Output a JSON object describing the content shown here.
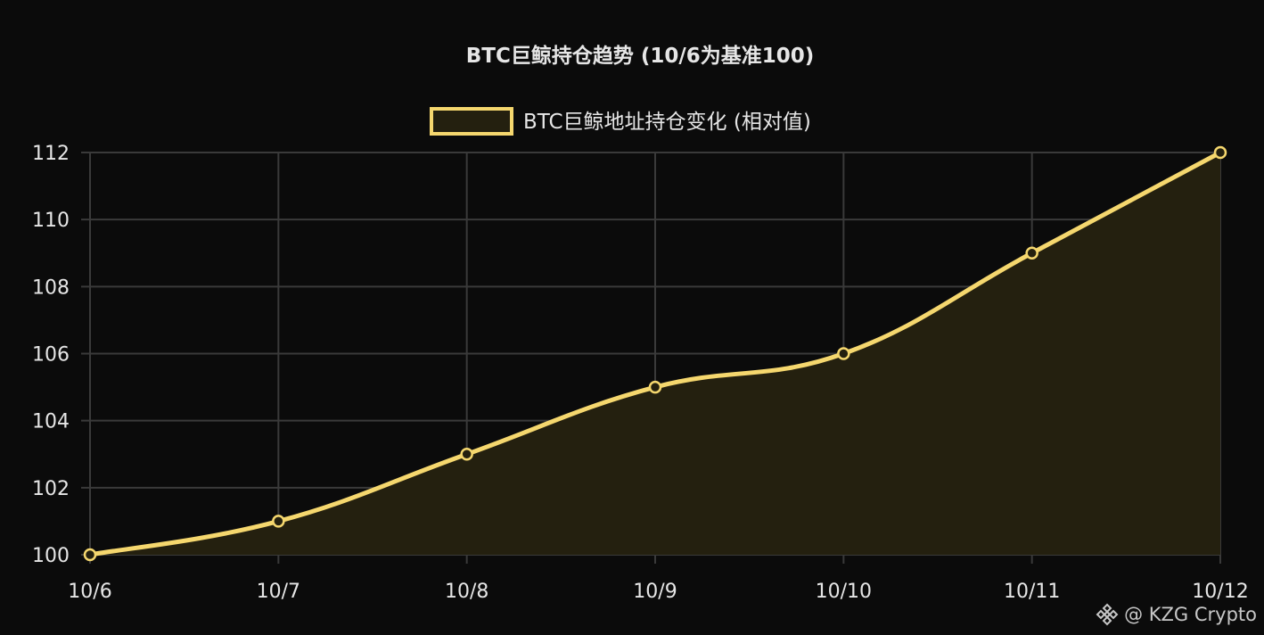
{
  "chart_data": {
    "type": "line",
    "title": "BTC巨鲸持仓趋势 (10/6为基准100)",
    "categories": [
      "10/6",
      "10/7",
      "10/8",
      "10/9",
      "10/10",
      "10/11",
      "10/12"
    ],
    "series": [
      {
        "name": "BTC巨鲸地址持仓变化 (相对值)",
        "values": [
          100,
          101,
          103,
          105,
          106,
          109,
          112
        ],
        "color": "#f5d76e",
        "fill": "#24200f"
      }
    ],
    "yticks": [
      100,
      102,
      104,
      106,
      108,
      110,
      112
    ],
    "ylim": [
      100,
      112
    ],
    "xlabel": "",
    "ylabel": "",
    "grid": true,
    "legend_position": "top-center",
    "background": "#0b0b0b",
    "grid_color": "#3a3a3a"
  },
  "watermark": {
    "icon": "binance-diamond-icon",
    "text": "@ KZG Crypto"
  }
}
